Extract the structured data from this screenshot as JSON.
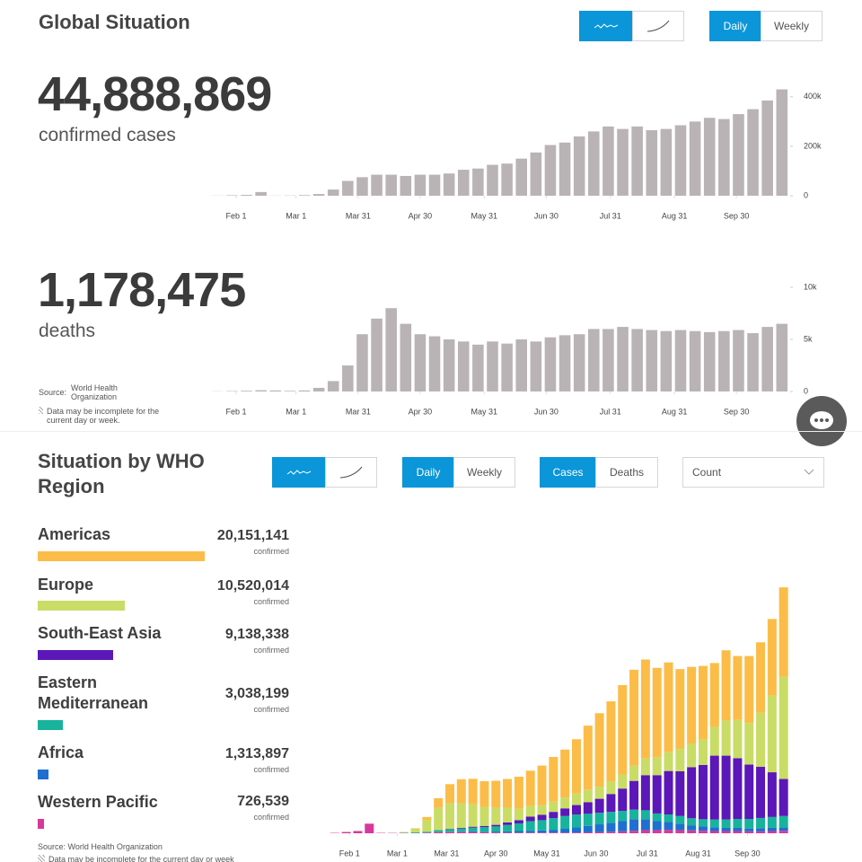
{
  "header": {
    "title": "Global Situation",
    "cases_total": "44,888,869",
    "cases_label": "confirmed cases",
    "deaths_total": "1,178,475",
    "deaths_label": "deaths",
    "source_label": "Source:",
    "source": "World Health Organization",
    "note": "Data may be incomplete for the current day or week."
  },
  "controls": {
    "daily": "Daily",
    "weekly": "Weekly"
  },
  "region_panel": {
    "title": "Situation by WHO Region",
    "daily": "Daily",
    "weekly": "Weekly",
    "cases": "Cases",
    "deaths": "Deaths",
    "measure": "Count",
    "unit": "confirmed",
    "source": "Source: World Health Organization",
    "note": "Data may be incomplete for the current day or week",
    "names": [
      "Americas",
      "Europe",
      "South-East Asia",
      "Eastern Mediterranean",
      "Africa",
      "Western Pacific"
    ],
    "colors": [
      "#fbbd48",
      "#c9dc66",
      "#5b17b8",
      "#17b39c",
      "#1f6fd0",
      "#d6399b"
    ],
    "values": [
      20151141,
      10520014,
      9138338,
      3038199,
      1313897,
      726539
    ],
    "value_labels": [
      "20,151,141",
      "10,520,014",
      "9,138,338",
      "3,038,199",
      "1,313,897",
      "726,539"
    ]
  },
  "chart_data": [
    {
      "type": "bar",
      "color": "#bab3b6",
      "x": [
        23,
        30,
        37,
        44,
        51,
        58,
        65,
        72,
        79,
        86,
        93,
        100,
        107,
        114,
        121,
        128,
        135,
        142,
        149,
        156,
        163,
        170,
        177,
        184,
        191,
        198,
        205,
        212,
        219,
        226,
        233,
        240,
        247,
        254,
        261,
        268,
        275,
        282,
        289,
        296
      ],
      "values": [
        600,
        2000,
        3500,
        15000,
        600,
        1000,
        2500,
        7000,
        25000,
        60000,
        75000,
        85000,
        85000,
        80000,
        85000,
        85000,
        90000,
        105000,
        110000,
        125000,
        130000,
        150000,
        175000,
        205000,
        215000,
        240000,
        260000,
        280000,
        270000,
        280000,
        265000,
        270000,
        285000,
        300000,
        315000,
        310000,
        330000,
        350000,
        385000,
        430000
      ],
      "xlim": [
        22,
        300
      ],
      "xticks": [
        {
          "value": 32,
          "label": "Feb 1"
        },
        {
          "value": 61,
          "label": "Mar 1"
        },
        {
          "value": 91,
          "label": "Mar 31"
        },
        {
          "value": 121,
          "label": "Apr 30"
        },
        {
          "value": 152,
          "label": "May 31"
        },
        {
          "value": 182,
          "label": "Jun 30"
        },
        {
          "value": 213,
          "label": "Jul 31"
        },
        {
          "value": 244,
          "label": "Aug 31"
        },
        {
          "value": 274,
          "label": "Sep 30"
        }
      ],
      "ylim": [
        0,
        490000
      ],
      "yticks": [
        0,
        {
          "value": 200000,
          "label": "200k"
        },
        {
          "value": 400000,
          "label": "400k"
        }
      ]
    },
    {
      "type": "bar",
      "color": "#bab3b6",
      "x": [
        23,
        30,
        37,
        44,
        51,
        58,
        65,
        72,
        79,
        86,
        93,
        100,
        107,
        114,
        121,
        128,
        135,
        142,
        149,
        156,
        163,
        170,
        177,
        184,
        191,
        198,
        205,
        212,
        219,
        226,
        233,
        240,
        247,
        254,
        261,
        268,
        275,
        282,
        289,
        296
      ],
      "values": [
        17,
        40,
        70,
        120,
        100,
        60,
        100,
        350,
        1000,
        2500,
        5500,
        7000,
        8000,
        6500,
        5500,
        5300,
        5000,
        4800,
        4500,
        4800,
        4600,
        5000,
        4800,
        5200,
        5400,
        5500,
        6000,
        6000,
        6200,
        6000,
        5900,
        5800,
        5900,
        5800,
        5700,
        5800,
        5900,
        5600,
        6200,
        6500
      ],
      "xlim": [
        22,
        300
      ],
      "xticks": [
        {
          "value": 32,
          "label": "Feb 1"
        },
        {
          "value": 61,
          "label": "Mar 1"
        },
        {
          "value": 91,
          "label": "Mar 31"
        },
        {
          "value": 121,
          "label": "Apr 30"
        },
        {
          "value": 152,
          "label": "May 31"
        },
        {
          "value": 182,
          "label": "Jun 30"
        },
        {
          "value": 213,
          "label": "Jul 31"
        },
        {
          "value": 244,
          "label": "Aug 31"
        },
        {
          "value": 274,
          "label": "Sep 30"
        }
      ],
      "ylim": [
        0,
        12500
      ],
      "yticks": [
        0,
        {
          "value": 5000,
          "label": "5k"
        },
        {
          "value": 10000,
          "label": "10k"
        }
      ]
    },
    {
      "type": "stacked_bar",
      "x": [
        23,
        30,
        37,
        44,
        51,
        58,
        65,
        72,
        79,
        86,
        93,
        100,
        107,
        114,
        121,
        128,
        135,
        142,
        149,
        156,
        163,
        170,
        177,
        184,
        191,
        198,
        205,
        212,
        219,
        226,
        233,
        240,
        247,
        254,
        261,
        268,
        275,
        282,
        289,
        296
      ],
      "xlim": [
        22,
        300
      ],
      "xticks": [
        {
          "value": 32,
          "label": "Feb 1"
        },
        {
          "value": 61,
          "label": "Mar 1"
        },
        {
          "value": 91,
          "label": "Mar 31"
        },
        {
          "value": 121,
          "label": "Apr 30"
        },
        {
          "value": 152,
          "label": "May 31"
        },
        {
          "value": 182,
          "label": "Jun 30"
        },
        {
          "value": 213,
          "label": "Jul 31"
        },
        {
          "value": 244,
          "label": "Aug 31"
        },
        {
          "value": 274,
          "label": "Sep 30"
        }
      ],
      "ylim": [
        0,
        440000
      ],
      "series": [
        {
          "name": "Western Pacific",
          "color": "#d6399b",
          "values": [
            600,
            2000,
            3500,
            15000,
            600,
            500,
            500,
            500,
            1000,
            1500,
            2000,
            2000,
            2000,
            1500,
            1200,
            1000,
            1000,
            1000,
            1000,
            1000,
            1000,
            1200,
            1500,
            2000,
            2500,
            3000,
            4000,
            5000,
            5000,
            5500,
            5000,
            4500,
            4000,
            3500,
            3500,
            3500,
            3000,
            3000,
            3500,
            4000
          ]
        },
        {
          "name": "Africa",
          "color": "#1f6fd0",
          "values": [
            0,
            0,
            0,
            0,
            0,
            0,
            0,
            0,
            0,
            200,
            400,
            600,
            800,
            1000,
            1500,
            2000,
            2500,
            3000,
            3500,
            4500,
            6000,
            8000,
            10000,
            12000,
            14000,
            16000,
            18000,
            17000,
            14000,
            12000,
            10000,
            8000,
            7000,
            6000,
            5000,
            5000,
            4500,
            5000,
            5000,
            5000
          ]
        },
        {
          "name": "Eastern Mediterranean",
          "color": "#17b39c",
          "values": [
            0,
            0,
            0,
            0,
            0,
            0,
            500,
            1000,
            1500,
            3000,
            4000,
            5000,
            6000,
            7000,
            8000,
            10000,
            12000,
            15000,
            16000,
            18000,
            20000,
            20000,
            19000,
            18000,
            17000,
            16000,
            15000,
            14000,
            12000,
            12000,
            12000,
            11000,
            11000,
            12000,
            13000,
            14000,
            15000,
            16000,
            17000,
            18000
          ]
        },
        {
          "name": "South-East Asia",
          "color": "#5b17b8",
          "values": [
            0,
            0,
            0,
            0,
            0,
            0,
            0,
            0,
            0,
            200,
            500,
            1000,
            1500,
            2000,
            2500,
            4000,
            5000,
            7000,
            8500,
            10000,
            12000,
            15000,
            18000,
            22000,
            28000,
            35000,
            45000,
            55000,
            60000,
            68000,
            70000,
            80000,
            85000,
            100000,
            100000,
            95000,
            85000,
            80000,
            70000,
            58000
          ]
        },
        {
          "name": "Europe",
          "color": "#c9dc66",
          "values": [
            0,
            0,
            0,
            0,
            0,
            0,
            1000,
            6000,
            18000,
            35000,
            40000,
            38000,
            35000,
            30000,
            27000,
            23000,
            18000,
            17000,
            15000,
            16000,
            17000,
            18000,
            20000,
            19000,
            20000,
            22000,
            24000,
            26000,
            28000,
            30000,
            35000,
            37000,
            40000,
            45000,
            55000,
            60000,
            65000,
            85000,
            120000,
            160000
          ]
        },
        {
          "name": "Americas",
          "color": "#fbbd48",
          "values": [
            0,
            0,
            0,
            0,
            0,
            0,
            100,
            500,
            5000,
            15000,
            30000,
            38000,
            40000,
            40000,
            42000,
            45000,
            50000,
            55000,
            62000,
            70000,
            75000,
            85000,
            100000,
            115000,
            125000,
            140000,
            150000,
            155000,
            140000,
            140000,
            125000,
            120000,
            115000,
            100000,
            110000,
            100000,
            105000,
            110000,
            120000,
            140000
          ]
        }
      ]
    }
  ]
}
